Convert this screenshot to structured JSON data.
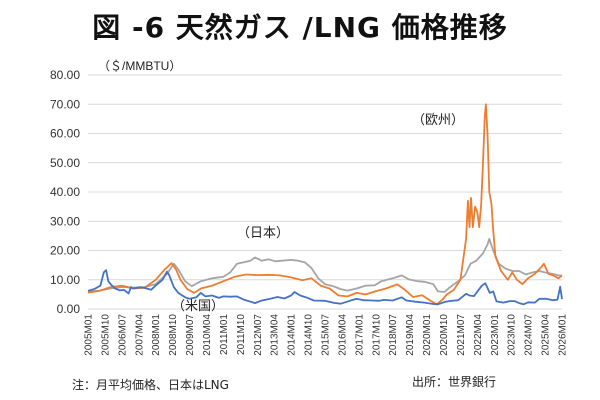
{
  "title": "図 -6 天然ガス /LNG 価格推移",
  "note": "注：月平均価格、日本はLNG",
  "source": "出所：世界銀行",
  "chart_data": {
    "type": "line",
    "ylabel": "（＄/MMBTU）",
    "ylim": [
      0,
      80
    ],
    "yticks": [
      "0.00",
      "10.00",
      "20.00",
      "30.00",
      "40.00",
      "50.00",
      "60.00",
      "70.00",
      "80.00"
    ],
    "x_start": 2005.0,
    "x_end": 2026.0,
    "x_ticks": [
      "2005M01",
      "2005M10",
      "2006M07",
      "2007M04",
      "2008M01",
      "2008M10",
      "2009M07",
      "2010M04",
      "2011M01",
      "2011M10",
      "2012M07",
      "2013M04",
      "2014M01",
      "2014M10",
      "2015M07",
      "2016M04",
      "2017M01",
      "2017M10",
      "2018M07",
      "2019M04",
      "2020M01",
      "2020M10",
      "2021M07",
      "2022M04",
      "2023M01",
      "2023M10",
      "2024M07",
      "2025M04",
      "2026M01"
    ],
    "annotations": [
      {
        "text": "（欧州）",
        "series": "europe"
      },
      {
        "text": "（日本）",
        "series": "japan"
      },
      {
        "text": "（米国）",
        "series": "us"
      }
    ],
    "series": [
      {
        "key": "us",
        "color": "#4472C4",
        "points": [
          [
            2005.0,
            6.2
          ],
          [
            2005.3,
            6.9
          ],
          [
            2005.55,
            8.0
          ],
          [
            2005.7,
            12.5
          ],
          [
            2005.8,
            13.3
          ],
          [
            2005.9,
            9.5
          ],
          [
            2006.0,
            8.5
          ],
          [
            2006.2,
            7.0
          ],
          [
            2006.4,
            6.4
          ],
          [
            2006.6,
            6.5
          ],
          [
            2006.8,
            5.3
          ],
          [
            2006.9,
            7.5
          ],
          [
            2007.0,
            7.0
          ],
          [
            2007.3,
            7.5
          ],
          [
            2007.5,
            7.2
          ],
          [
            2007.8,
            6.6
          ],
          [
            2008.0,
            8.0
          ],
          [
            2008.3,
            10.0
          ],
          [
            2008.5,
            12.8
          ],
          [
            2008.6,
            11.5
          ],
          [
            2008.8,
            7.5
          ],
          [
            2009.0,
            5.5
          ],
          [
            2009.3,
            4.0
          ],
          [
            2009.5,
            3.5
          ],
          [
            2009.8,
            4.0
          ],
          [
            2010.0,
            5.5
          ],
          [
            2010.2,
            4.3
          ],
          [
            2010.5,
            4.6
          ],
          [
            2010.8,
            3.8
          ],
          [
            2011.0,
            4.3
          ],
          [
            2011.3,
            4.2
          ],
          [
            2011.6,
            4.3
          ],
          [
            2011.9,
            3.2
          ],
          [
            2012.2,
            2.5
          ],
          [
            2012.4,
            2.0
          ],
          [
            2012.7,
            2.9
          ],
          [
            2013.0,
            3.4
          ],
          [
            2013.4,
            4.1
          ],
          [
            2013.7,
            3.6
          ],
          [
            2014.0,
            4.6
          ],
          [
            2014.15,
            5.8
          ],
          [
            2014.4,
            4.6
          ],
          [
            2014.7,
            3.9
          ],
          [
            2015.0,
            2.9
          ],
          [
            2015.5,
            2.8
          ],
          [
            2015.9,
            2.1
          ],
          [
            2016.2,
            1.8
          ],
          [
            2016.6,
            2.8
          ],
          [
            2016.9,
            3.5
          ],
          [
            2017.2,
            3.0
          ],
          [
            2017.6,
            2.9
          ],
          [
            2017.9,
            2.8
          ],
          [
            2018.1,
            3.1
          ],
          [
            2018.5,
            2.9
          ],
          [
            2018.9,
            4.0
          ],
          [
            2019.1,
            2.9
          ],
          [
            2019.5,
            2.5
          ],
          [
            2019.9,
            2.2
          ],
          [
            2020.3,
            1.7
          ],
          [
            2020.5,
            1.6
          ],
          [
            2020.8,
            2.4
          ],
          [
            2021.0,
            2.7
          ],
          [
            2021.4,
            3.0
          ],
          [
            2021.75,
            5.2
          ],
          [
            2021.9,
            4.6
          ],
          [
            2022.1,
            4.4
          ],
          [
            2022.45,
            8.0
          ],
          [
            2022.6,
            8.8
          ],
          [
            2022.8,
            5.5
          ],
          [
            2022.95,
            6.0
          ],
          [
            2023.1,
            2.6
          ],
          [
            2023.4,
            2.2
          ],
          [
            2023.7,
            2.7
          ],
          [
            2023.9,
            2.7
          ],
          [
            2024.1,
            2.0
          ],
          [
            2024.3,
            1.6
          ],
          [
            2024.5,
            2.3
          ],
          [
            2024.8,
            2.2
          ],
          [
            2025.0,
            3.5
          ],
          [
            2025.3,
            3.5
          ],
          [
            2025.6,
            3.0
          ],
          [
            2025.8,
            3.2
          ],
          [
            2025.92,
            7.6
          ],
          [
            2026.0,
            3.4
          ]
        ]
      },
      {
        "key": "europe",
        "color": "#ED7D31",
        "points": [
          [
            2005.0,
            5.6
          ],
          [
            2005.5,
            6.2
          ],
          [
            2006.0,
            7.5
          ],
          [
            2006.5,
            8.0
          ],
          [
            2007.0,
            7.0
          ],
          [
            2007.5,
            7.2
          ],
          [
            2008.0,
            10.0
          ],
          [
            2008.4,
            13.5
          ],
          [
            2008.7,
            15.7
          ],
          [
            2008.9,
            13.5
          ],
          [
            2009.1,
            10.0
          ],
          [
            2009.4,
            6.8
          ],
          [
            2009.7,
            5.5
          ],
          [
            2010.0,
            7.0
          ],
          [
            2010.5,
            8.0
          ],
          [
            2011.0,
            9.5
          ],
          [
            2011.5,
            11.0
          ],
          [
            2012.0,
            11.8
          ],
          [
            2012.5,
            11.6
          ],
          [
            2013.0,
            11.7
          ],
          [
            2013.5,
            11.5
          ],
          [
            2014.0,
            10.8
          ],
          [
            2014.5,
            9.8
          ],
          [
            2014.9,
            10.5
          ],
          [
            2015.3,
            8.0
          ],
          [
            2015.7,
            7.0
          ],
          [
            2016.1,
            4.6
          ],
          [
            2016.5,
            4.3
          ],
          [
            2016.9,
            5.5
          ],
          [
            2017.3,
            5.0
          ],
          [
            2017.8,
            6.2
          ],
          [
            2018.2,
            7.0
          ],
          [
            2018.7,
            8.4
          ],
          [
            2019.0,
            6.8
          ],
          [
            2019.4,
            4.1
          ],
          [
            2019.8,
            4.7
          ],
          [
            2020.2,
            2.7
          ],
          [
            2020.45,
            1.6
          ],
          [
            2020.7,
            3.2
          ],
          [
            2020.9,
            5.0
          ],
          [
            2021.2,
            6.5
          ],
          [
            2021.5,
            10.0
          ],
          [
            2021.75,
            24.0
          ],
          [
            2021.83,
            37.0
          ],
          [
            2021.9,
            28.0
          ],
          [
            2021.97,
            38.0
          ],
          [
            2022.05,
            28.0
          ],
          [
            2022.15,
            35.0
          ],
          [
            2022.25,
            33.0
          ],
          [
            2022.33,
            28.0
          ],
          [
            2022.42,
            36.0
          ],
          [
            2022.5,
            50.0
          ],
          [
            2022.58,
            66.0
          ],
          [
            2022.63,
            70.0
          ],
          [
            2022.7,
            60.0
          ],
          [
            2022.78,
            40.0
          ],
          [
            2022.87,
            36.0
          ],
          [
            2022.95,
            27.0
          ],
          [
            2023.05,
            18.0
          ],
          [
            2023.3,
            13.0
          ],
          [
            2023.6,
            10.0
          ],
          [
            2023.8,
            12.5
          ],
          [
            2024.0,
            10.0
          ],
          [
            2024.25,
            8.5
          ],
          [
            2024.5,
            10.5
          ],
          [
            2024.8,
            12.0
          ],
          [
            2025.1,
            14.5
          ],
          [
            2025.2,
            15.5
          ],
          [
            2025.4,
            12.0
          ],
          [
            2025.6,
            11.5
          ],
          [
            2025.85,
            10.5
          ],
          [
            2026.0,
            11.5
          ]
        ]
      },
      {
        "key": "japan",
        "color": "#A5A5A5",
        "points": [
          [
            2005.0,
            6.0
          ],
          [
            2005.5,
            6.3
          ],
          [
            2006.0,
            7.0
          ],
          [
            2006.5,
            7.5
          ],
          [
            2007.0,
            7.3
          ],
          [
            2007.5,
            7.5
          ],
          [
            2008.0,
            8.5
          ],
          [
            2008.5,
            12.0
          ],
          [
            2008.8,
            15.5
          ],
          [
            2009.0,
            13.5
          ],
          [
            2009.3,
            9.5
          ],
          [
            2009.6,
            7.8
          ],
          [
            2010.0,
            9.5
          ],
          [
            2010.5,
            10.5
          ],
          [
            2011.0,
            11.0
          ],
          [
            2011.3,
            12.5
          ],
          [
            2011.6,
            15.5
          ],
          [
            2011.9,
            16.0
          ],
          [
            2012.2,
            16.5
          ],
          [
            2012.4,
            17.6
          ],
          [
            2012.7,
            16.5
          ],
          [
            2013.0,
            17.0
          ],
          [
            2013.3,
            16.3
          ],
          [
            2013.6,
            16.5
          ],
          [
            2014.0,
            16.8
          ],
          [
            2014.3,
            16.5
          ],
          [
            2014.6,
            16.0
          ],
          [
            2014.9,
            14.0
          ],
          [
            2015.2,
            10.5
          ],
          [
            2015.5,
            8.5
          ],
          [
            2015.9,
            7.7
          ],
          [
            2016.2,
            6.8
          ],
          [
            2016.5,
            6.3
          ],
          [
            2016.9,
            7.0
          ],
          [
            2017.3,
            8.0
          ],
          [
            2017.7,
            8.1
          ],
          [
            2018.0,
            9.5
          ],
          [
            2018.5,
            10.5
          ],
          [
            2018.9,
            11.5
          ],
          [
            2019.2,
            10.2
          ],
          [
            2019.6,
            9.5
          ],
          [
            2019.9,
            9.3
          ],
          [
            2020.3,
            8.5
          ],
          [
            2020.5,
            6.0
          ],
          [
            2020.8,
            5.8
          ],
          [
            2021.0,
            7.2
          ],
          [
            2021.4,
            9.5
          ],
          [
            2021.7,
            11.5
          ],
          [
            2021.95,
            15.5
          ],
          [
            2022.2,
            16.5
          ],
          [
            2022.5,
            19.0
          ],
          [
            2022.7,
            22.0
          ],
          [
            2022.78,
            24.0
          ],
          [
            2022.95,
            20.0
          ],
          [
            2023.2,
            15.5
          ],
          [
            2023.5,
            13.8
          ],
          [
            2023.8,
            13.0
          ],
          [
            2024.1,
            13.0
          ],
          [
            2024.4,
            11.8
          ],
          [
            2024.7,
            12.5
          ],
          [
            2025.0,
            13.0
          ],
          [
            2025.3,
            12.4
          ],
          [
            2025.6,
            12.0
          ],
          [
            2025.85,
            11.5
          ],
          [
            2026.0,
            11.5
          ]
        ]
      }
    ]
  }
}
